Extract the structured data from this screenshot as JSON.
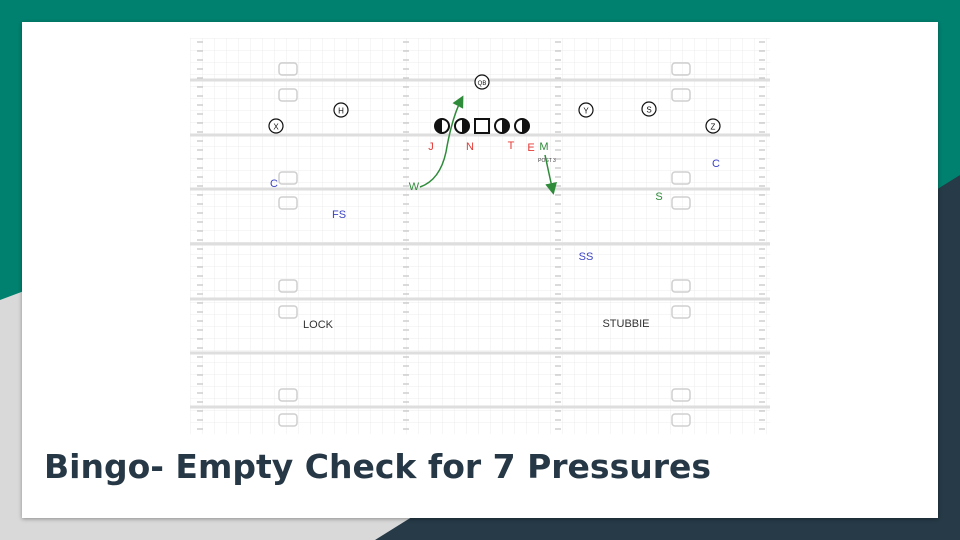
{
  "slide": {
    "title": "Bingo- Empty Check for 7 Pressures",
    "colors": {
      "background_teal": "#00816f",
      "background_dark": "#263a47",
      "background_light": "#d9d9d9",
      "card": "#ffffff",
      "title_text": "#263745"
    }
  },
  "diagram": {
    "offense": {
      "quarterback": "QB",
      "receivers": [
        "X",
        "H",
        "Y",
        "S",
        "Z"
      ],
      "linemen_count": 5
    },
    "defense": {
      "rushers": [
        "J",
        "N",
        "T",
        "E"
      ],
      "linebackers": [
        "W",
        "M"
      ],
      "linebacker_note": "POST 3",
      "overhang": "S",
      "corners": [
        "C",
        "C"
      ],
      "safeties": [
        "FS",
        "SS"
      ],
      "coverage_labels": [
        "LOCK",
        "STUBBIE"
      ]
    },
    "colors": {
      "field_lines": "#dedede",
      "grid": "#ececec",
      "offense": "#111111",
      "rushers": "#e53935",
      "linebackers": "#2e8b3a",
      "coverage": "#3b43c4",
      "labels": "#333333"
    }
  }
}
